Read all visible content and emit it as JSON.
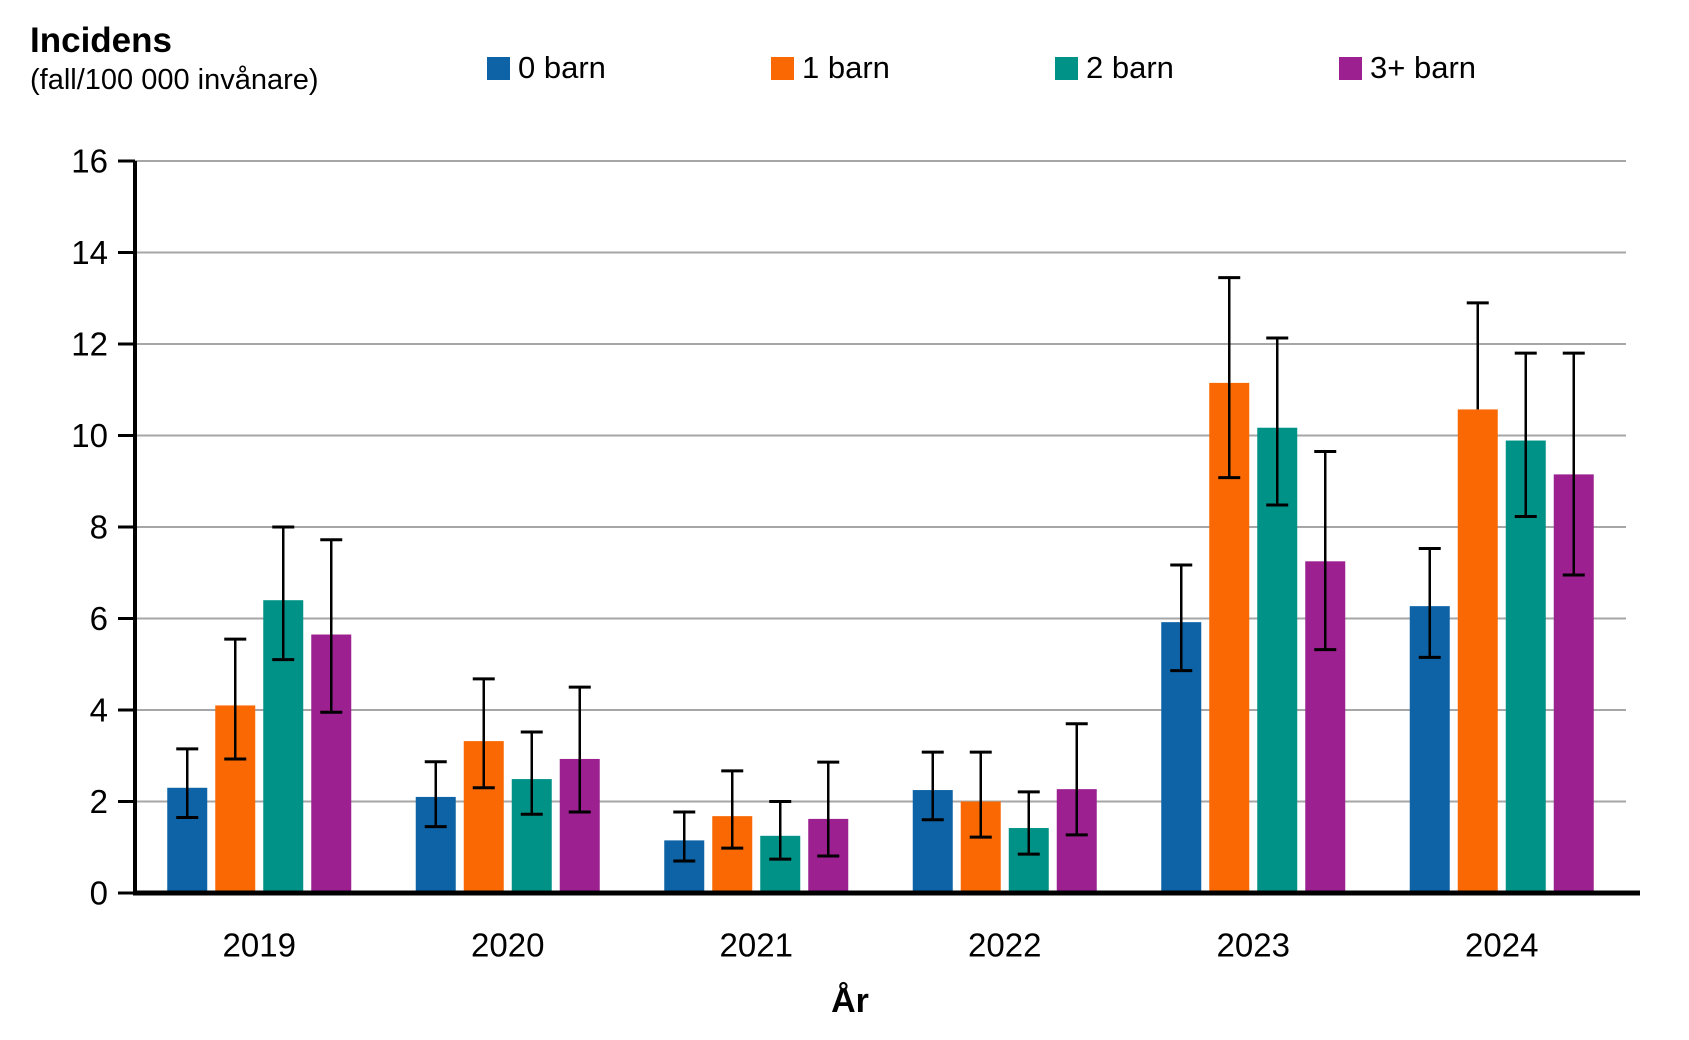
{
  "page": {
    "background_color": "#ffffff",
    "text_color": "#000000"
  },
  "header": {
    "title": "Incidens",
    "subtitle": "(fall/100 000 invånare)"
  },
  "legend": {
    "position": "top",
    "items": [
      {
        "label": "0 barn",
        "color": "#0D63A5"
      },
      {
        "label": "1 barn",
        "color": "#F96802"
      },
      {
        "label": "2 barn",
        "color": "#009287"
      },
      {
        "label": "3+ barn",
        "color": "#9C2090"
      }
    ]
  },
  "chart_data": {
    "type": "bar",
    "title": "Incidens",
    "subtitle": "(fall/100 000 invånare)",
    "xlabel": "År",
    "ylabel": "Incidens (fall/100 000 invånare)",
    "ylim": [
      0,
      16
    ],
    "yticks": [
      0,
      2,
      4,
      6,
      8,
      10,
      12,
      14,
      16
    ],
    "grid": true,
    "gridline_color": "#A6A6A6",
    "axis_color": "#000000",
    "error_bar_color": "#000000",
    "legend_position": "top",
    "categories": [
      "2019",
      "2020",
      "2021",
      "2022",
      "2023",
      "2024"
    ],
    "series": [
      {
        "name": "0 barn",
        "color": "#0D63A5",
        "values": [
          2.3,
          2.1,
          1.15,
          2.25,
          5.92,
          6.27
        ],
        "ci_low": [
          1.65,
          1.45,
          0.7,
          1.6,
          4.86,
          5.15
        ],
        "ci_high": [
          3.15,
          2.87,
          1.77,
          3.08,
          7.17,
          7.53
        ]
      },
      {
        "name": "1 barn",
        "color": "#F96802",
        "values": [
          4.1,
          3.32,
          1.68,
          2.0,
          11.15,
          10.57
        ],
        "ci_low": [
          2.93,
          2.3,
          0.98,
          1.22,
          9.08,
          null
        ],
        "ci_high": [
          5.55,
          4.68,
          2.67,
          3.08,
          13.45,
          12.9
        ]
      },
      {
        "name": "2 barn",
        "color": "#009287",
        "values": [
          6.4,
          2.49,
          1.25,
          1.42,
          10.17,
          9.89
        ],
        "ci_low": [
          5.1,
          1.72,
          0.74,
          0.85,
          8.48,
          8.23
        ],
        "ci_high": [
          8.0,
          3.52,
          2.0,
          2.21,
          12.13,
          11.8
        ]
      },
      {
        "name": "3+ barn",
        "color": "#9C2090",
        "values": [
          5.65,
          2.93,
          1.62,
          2.27,
          7.25,
          9.15
        ],
        "ci_low": [
          3.95,
          1.77,
          0.81,
          1.27,
          5.32,
          6.95
        ],
        "ci_high": [
          7.72,
          4.5,
          2.86,
          3.7,
          9.65,
          11.8
        ]
      }
    ]
  }
}
